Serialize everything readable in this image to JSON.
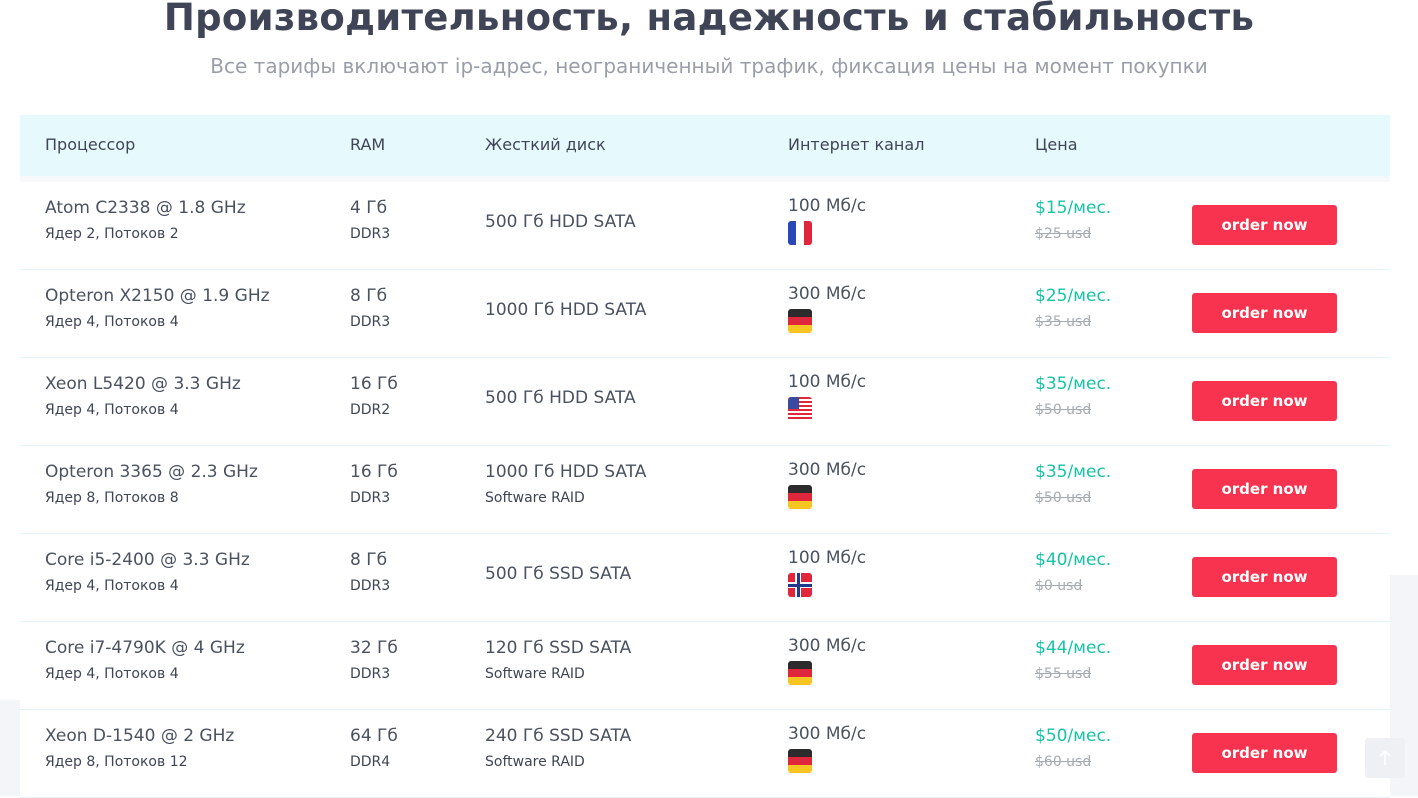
{
  "header": {
    "title": "Производительность, надежность и стабильность",
    "subtitle": "Все тарифы включают ip-адрес, неограниченный трафик, фиксация цены на момент покупки"
  },
  "table": {
    "columns": [
      "Процессор",
      "RAM",
      "Жесткий диск",
      "Интернет канал",
      "Цена"
    ],
    "order_label": "order now",
    "rows": [
      {
        "cpu": "Atom C2338 @ 1.8 GHz",
        "cpu_detail": "Ядер 2, Потоков 2",
        "ram": "4 Гб",
        "ram_type": "DDR3",
        "disk": "500 Гб HDD SATA",
        "disk_detail": "",
        "speed": "100 Мб/с",
        "flag": "france-flag-icon",
        "price": "$15/мес.",
        "old_price": "$25 usd"
      },
      {
        "cpu": "Opteron X2150 @ 1.9 GHz",
        "cpu_detail": "Ядер 4, Потоков 4",
        "ram": "8 Гб",
        "ram_type": "DDR3",
        "disk": "1000 Гб HDD SATA",
        "disk_detail": "",
        "speed": "300 Мб/с",
        "flag": "germany-flag-icon",
        "price": "$25/мес.",
        "old_price": "$35 usd"
      },
      {
        "cpu": "Xeon L5420 @ 3.3 GHz",
        "cpu_detail": "Ядер 4, Потоков 4",
        "ram": "16 Гб",
        "ram_type": "DDR2",
        "disk": "500 Гб HDD SATA",
        "disk_detail": "",
        "speed": "100 Мб/с",
        "flag": "usa-flag-icon",
        "price": "$35/мес.",
        "old_price": "$50 usd"
      },
      {
        "cpu": "Opteron 3365 @ 2.3 GHz",
        "cpu_detail": "Ядер 8, Потоков 8",
        "ram": "16 Гб",
        "ram_type": "DDR3",
        "disk": "1000 Гб HDD SATA",
        "disk_detail": "Software RAID",
        "speed": "300 Мб/с",
        "flag": "germany-flag-icon",
        "price": "$35/мес.",
        "old_price": "$50 usd"
      },
      {
        "cpu": "Core i5-2400 @ 3.3 GHz",
        "cpu_detail": "Ядер 4, Потоков 4",
        "ram": "8 Гб",
        "ram_type": "DDR3",
        "disk": "500 Гб SSD SATA",
        "disk_detail": "",
        "speed": "100 Мб/с",
        "flag": "norway-flag-icon",
        "price": "$40/мес.",
        "old_price": "$0 usd"
      },
      {
        "cpu": "Core i7-4790K @ 4 GHz",
        "cpu_detail": "Ядер 4, Потоков 4",
        "ram": "32 Гб",
        "ram_type": "DDR3",
        "disk": "120 Гб SSD SATA",
        "disk_detail": "Software RAID",
        "speed": "300 Мб/с",
        "flag": "germany-flag-icon",
        "price": "$44/мес.",
        "old_price": "$55 usd"
      },
      {
        "cpu": "Xeon D-1540 @ 2 GHz",
        "cpu_detail": "Ядер 8, Потоков 12",
        "ram": "64 Гб",
        "ram_type": "DDR4",
        "disk": "240 Гб SSD SATA",
        "disk_detail": "Software RAID",
        "speed": "300 Мб/с",
        "flag": "germany-flag-icon",
        "price": "$50/мес.",
        "old_price": "$60 usd"
      }
    ]
  },
  "colors": {
    "accent_green": "#16c4a4",
    "button_red": "#f7334f",
    "header_bg": "#e6f9fd"
  },
  "scroll_top_icon": "arrow-up-icon"
}
